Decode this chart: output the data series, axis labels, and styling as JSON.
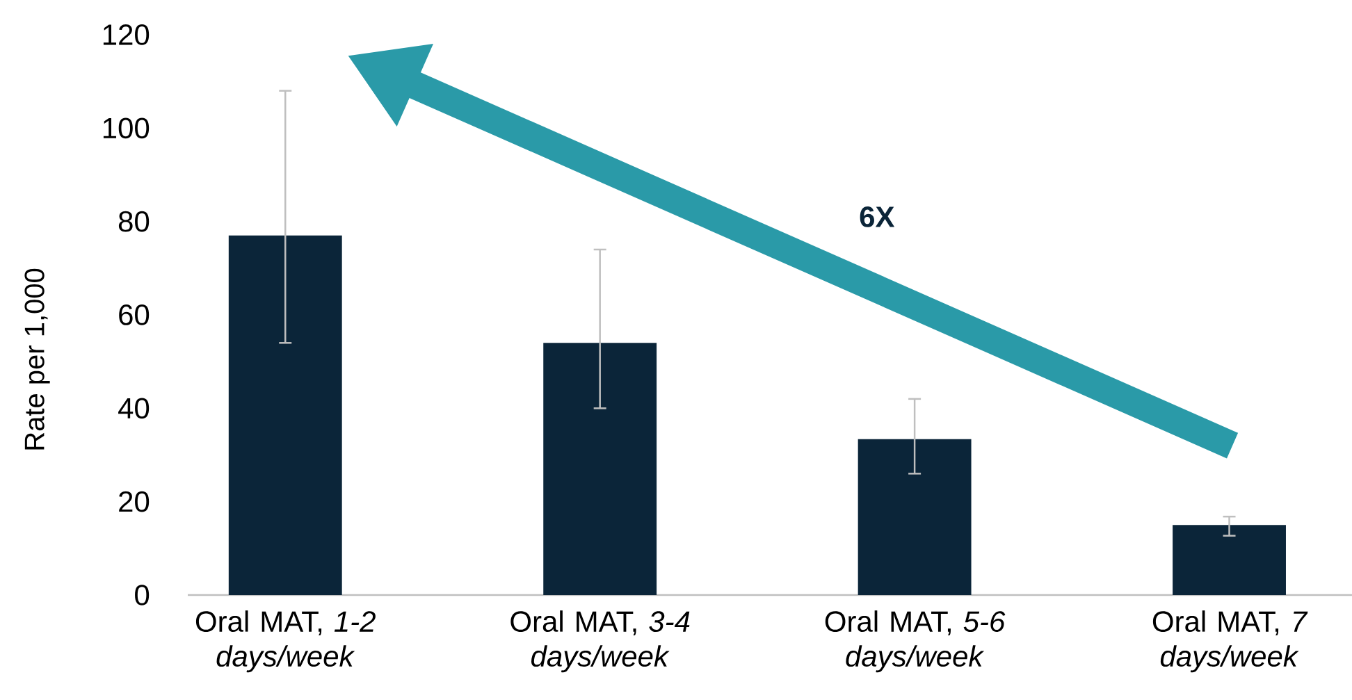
{
  "chart_data": {
    "type": "bar",
    "ylabel": "Rate per 1,000",
    "categories": [
      "Oral MAT, *1-2 days/week*",
      "Oral MAT, *3-4 days/week*",
      "Oral MAT, *5-6 days/week*",
      "Oral MAT, *7 days/week*"
    ],
    "values": [
      77,
      54,
      33.4,
      15
    ],
    "errors": [
      [
        54,
        108
      ],
      [
        40,
        74
      ],
      [
        26,
        42
      ],
      [
        12.7,
        16.8
      ]
    ],
    "color": "#0b2539",
    "ylim": [
      0,
      120
    ],
    "yticks": [
      0,
      20,
      40,
      60,
      80,
      100,
      120
    ],
    "annotations": [
      "6X"
    ]
  }
}
